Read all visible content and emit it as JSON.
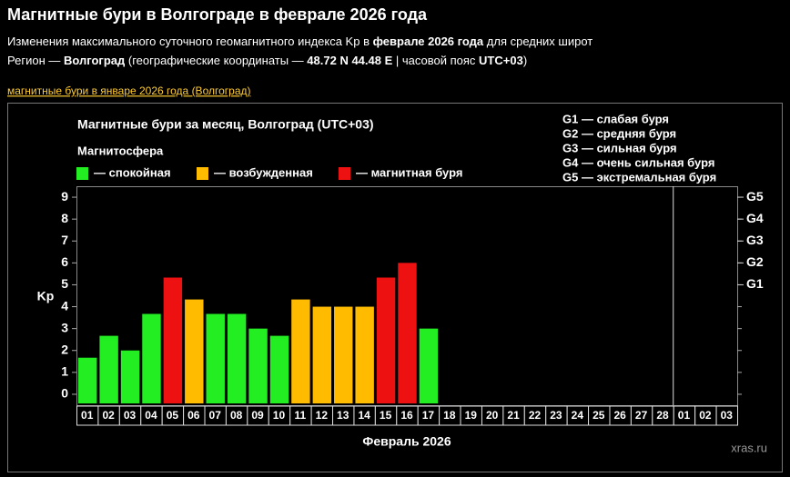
{
  "header": {
    "title": "Магнитные бури в Волгограде в феврале 2026 года",
    "subtitle": [
      {
        "text": "Изменения максимального суточного геомагнитного индекса Kp в ",
        "bold": false
      },
      {
        "text": "феврале 2026 года",
        "bold": true
      },
      {
        "text": " для средних широт",
        "bold": false
      }
    ],
    "region": [
      {
        "text": "Регион — ",
        "bold": false
      },
      {
        "text": "Волгоград",
        "bold": true
      },
      {
        "text": " (географические координаты — ",
        "bold": false
      },
      {
        "text": "48.72 N 44.48 E",
        "bold": true
      },
      {
        "text": " | часовой пояс ",
        "bold": false
      },
      {
        "text": "UTC+03",
        "bold": true
      },
      {
        "text": ")",
        "bold": false
      }
    ],
    "link": "магнитные бури в январе 2026 года (Волгоград)"
  },
  "chart_data": {
    "type": "bar",
    "title": "Магнитные бури за месяц, Волгоград (UTC+03)",
    "legend_title": "Магнитосфера",
    "legend": [
      {
        "name": "— спокойная",
        "color": "#22ee22"
      },
      {
        "name": "— возбужденная",
        "color": "#ffbb00"
      },
      {
        "name": "— магнитная буря",
        "color": "#ee1111"
      }
    ],
    "storm_legend": [
      "G1 — слабая буря",
      "G2 — средняя буря",
      "G3 — сильная буря",
      "G4 — очень сильная буря",
      "G5 — экстремальная буря"
    ],
    "y_label": "Kp",
    "x_label": "Февраль 2026",
    "watermark": "xras.ru",
    "categories": [
      "01",
      "02",
      "03",
      "04",
      "05",
      "06",
      "07",
      "08",
      "09",
      "10",
      "11",
      "12",
      "13",
      "14",
      "15",
      "16",
      "17",
      "18",
      "19",
      "20",
      "21",
      "22",
      "23",
      "24",
      "25",
      "26",
      "27",
      "28",
      "01",
      "02",
      "03"
    ],
    "values": [
      1.67,
      2.67,
      2.0,
      3.67,
      5.33,
      4.33,
      3.67,
      3.67,
      3.0,
      2.67,
      4.33,
      4.0,
      4.0,
      4.0,
      5.33,
      6.0,
      3.0,
      null,
      null,
      null,
      null,
      null,
      null,
      null,
      null,
      null,
      null,
      null,
      null,
      null,
      null
    ],
    "colors": [
      "#22ee22",
      "#22ee22",
      "#22ee22",
      "#22ee22",
      "#ee1111",
      "#ffbb00",
      "#22ee22",
      "#22ee22",
      "#22ee22",
      "#22ee22",
      "#ffbb00",
      "#ffbb00",
      "#ffbb00",
      "#ffbb00",
      "#ee1111",
      "#ee1111",
      "#22ee22",
      null,
      null,
      null,
      null,
      null,
      null,
      null,
      null,
      null,
      null,
      null,
      null,
      null,
      null
    ],
    "ylim": [
      -0.5,
      9.5
    ],
    "yticks": [
      0,
      1,
      2,
      3,
      4,
      5,
      6,
      7,
      8,
      9
    ],
    "y2lim": [
      -0.5,
      9.5
    ],
    "y2ticks": [
      {
        "value": 5,
        "label": "G1"
      },
      {
        "value": 6,
        "label": "G2"
      },
      {
        "value": 7,
        "label": "G3"
      },
      {
        "value": 8,
        "label": "G4"
      },
      {
        "value": 9,
        "label": "G5"
      }
    ],
    "month_end_index": 27
  }
}
